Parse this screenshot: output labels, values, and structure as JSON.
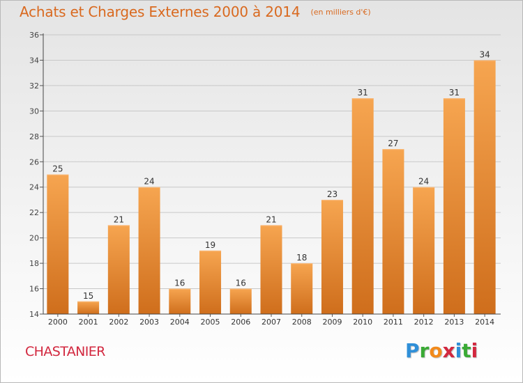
{
  "header": {
    "title": "Achats et Charges Externes 2000 à 2014",
    "subtitle": "(en milliers d'€)"
  },
  "footer": {
    "place": "CHASTANIER",
    "brand": {
      "letters": [
        "P",
        "r",
        "o",
        "x",
        "i",
        "t",
        "i"
      ],
      "colors": [
        "#2f8fd8",
        "#3aaa35",
        "#f28a1b",
        "#d2283f",
        "#2f8fd8",
        "#3aaa35",
        "#d2283f"
      ]
    }
  },
  "chart_data": {
    "type": "bar",
    "categories": [
      "2000",
      "2001",
      "2002",
      "2003",
      "2004",
      "2005",
      "2006",
      "2007",
      "2008",
      "2009",
      "2010",
      "2011",
      "2012",
      "2013",
      "2014"
    ],
    "values": [
      25,
      15,
      21,
      24,
      16,
      19,
      16,
      21,
      18,
      23,
      31,
      27,
      24,
      31,
      34
    ],
    "title": "Achats et Charges Externes 2000 à 2014",
    "subtitle": "(en milliers d'€)",
    "ylim": [
      14,
      36
    ],
    "yticks": [
      14,
      16,
      18,
      20,
      22,
      24,
      26,
      28,
      30,
      32,
      34,
      36
    ],
    "grid": true,
    "bar_color_top": "#f6a550",
    "bar_color_bottom": "#cf6e1c",
    "data_labels": true
  }
}
